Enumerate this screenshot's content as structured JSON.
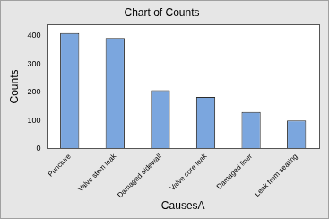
{
  "chart_data": {
    "type": "bar",
    "title": "Chart of Counts",
    "x_label": "CausesA",
    "y_label": "Counts",
    "categories": [
      "Puncture",
      "Valve stem leak",
      "Damaged sidewall",
      "Valve core leak",
      "Damaged liner",
      "Leak from seating"
    ],
    "values": [
      410,
      393,
      207,
      183,
      130,
      100
    ],
    "color": "#7ba6de",
    "ylim": [
      0,
      440
    ],
    "yticks": [
      0,
      100,
      200,
      300,
      400
    ],
    "grid": false
  }
}
